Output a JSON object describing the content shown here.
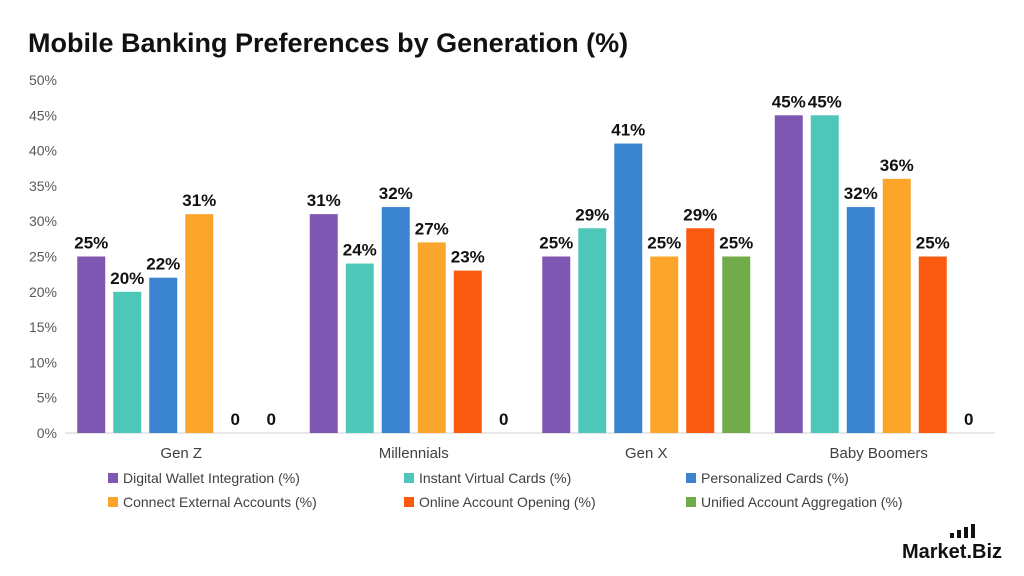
{
  "chart_data": {
    "type": "bar",
    "title": "Mobile Banking Preferences by Generation (%)",
    "categories": [
      "Gen Z",
      "Millennials",
      "Gen X",
      "Baby Boomers"
    ],
    "ylim": [
      0,
      50
    ],
    "yticks": [
      "0%",
      "5%",
      "10%",
      "15%",
      "20%",
      "25%",
      "30%",
      "35%",
      "40%",
      "45%",
      "50%"
    ],
    "grid": false,
    "legend_position": "bottom",
    "series": [
      {
        "name": "Digital Wallet Integration (%)",
        "color": "#7E57B2",
        "values": [
          25,
          31,
          25,
          45
        ],
        "labels": [
          "25%",
          "31%",
          "25%",
          "45%"
        ]
      },
      {
        "name": "Instant Virtual Cards (%)",
        "color": "#4FC7B8",
        "values": [
          20,
          24,
          29,
          45
        ],
        "labels": [
          "20%",
          "24%",
          "29%",
          "45%"
        ]
      },
      {
        "name": "Personalized Cards (%)",
        "color": "#3A84CF",
        "values": [
          22,
          32,
          41,
          32
        ],
        "labels": [
          "22%",
          "32%",
          "41%",
          "32%"
        ]
      },
      {
        "name": "Connect External Accounts (%)",
        "color": "#FBA62B",
        "values": [
          31,
          27,
          25,
          36
        ],
        "labels": [
          "31%",
          "27%",
          "25%",
          "36%"
        ]
      },
      {
        "name": "Online Account Opening (%)",
        "color": "#FA5A0F",
        "values": [
          0,
          23,
          29,
          25
        ],
        "labels": [
          "0",
          "23%",
          "29%",
          "25%"
        ]
      },
      {
        "name": "Unified Account Aggregation (%)",
        "color": "#72AC4A",
        "values": [
          0,
          0,
          25,
          0
        ],
        "labels": [
          "0",
          "0",
          "25%",
          "0"
        ]
      }
    ]
  },
  "brand": {
    "text": "Market.Biz"
  }
}
